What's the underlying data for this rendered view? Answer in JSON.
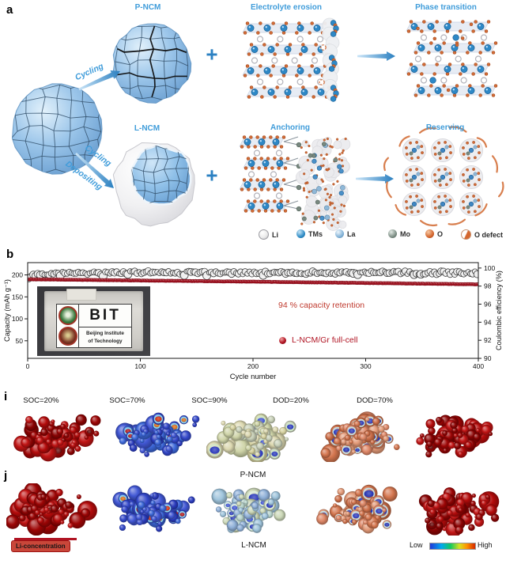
{
  "panel_labels": {
    "a": "a",
    "b": "b",
    "i": "i",
    "j": "j"
  },
  "panel_a": {
    "labels": {
      "p_ncm": "P-NCM",
      "l_ncm": "L-NCM",
      "cycling_top": "Cycling",
      "cycling_bottom": "Cycling",
      "depositing": "Depositing",
      "electrolyte_erosion": "Electrolyte erosion",
      "phase_transition": "Phase transition",
      "anchoring": "Anchoring",
      "reserving": "Reserving",
      "plus": "+"
    },
    "legend": [
      {
        "name": "li",
        "label": "Li"
      },
      {
        "name": "tms",
        "label": "TMs"
      },
      {
        "name": "la",
        "label": "La"
      },
      {
        "name": "mo",
        "label": "Mo"
      },
      {
        "name": "o",
        "label": "O"
      },
      {
        "name": "o-defect",
        "label": "O defect"
      }
    ],
    "accent_blue": "#3f9cda"
  },
  "panel_b": {
    "inset": {
      "big": "BIT",
      "line1": "Beijing Institute",
      "line2": "of Technology"
    }
  },
  "chart_data": {
    "type": "scatter",
    "xlabel": "Cycle number",
    "ylabel_left": "Capacity (mAh g⁻¹)",
    "ylabel_right": "Coulombic efficiency (%)",
    "xlim": [
      0,
      400
    ],
    "ylim_left": [
      10,
      228
    ],
    "ylim_right": [
      90,
      100.6
    ],
    "xticks": [
      0,
      100,
      200,
      300,
      400
    ],
    "yticks_left": [
      50,
      100,
      150,
      200
    ],
    "yticks_right": [
      90,
      92,
      94,
      96,
      98,
      100
    ],
    "annotation": "94 % capacity retention",
    "legend_label": "L-NCM/Gr full-cell",
    "grid": false,
    "series": [
      {
        "name": "Capacity (L-NCM/Gr full-cell)",
        "axis": "left",
        "marker": "filled-circle",
        "color": "#ab0f1e",
        "x": [
          1,
          100,
          200,
          300,
          400
        ],
        "y": [
          190,
          187.2,
          184.6,
          181.6,
          178.5
        ]
      },
      {
        "name": "Coulombic efficiency",
        "axis": "right",
        "marker": "open-circle",
        "color": "#4a4a4a",
        "x": [
          1,
          10,
          100,
          200,
          300,
          400
        ],
        "y": [
          98.9,
          99.4,
          99.5,
          99.45,
          99.5,
          99.45
        ]
      }
    ],
    "retention_value": "94 %"
  },
  "panel_i": {
    "columns": [
      "SOC=20%",
      "SOC=70%",
      "SOC=90%",
      "DOD=20%",
      "DOD=70%"
    ],
    "caption": "P-NCM",
    "palette_keys": [
      "red",
      "blue_hot",
      "cream",
      "salmon",
      "red"
    ]
  },
  "panel_j": {
    "caption": "L-NCM",
    "badge": "Li-concentration",
    "colorbar": {
      "low": "Low",
      "high": "High"
    },
    "palette_keys": [
      "red",
      "blue_hot",
      "cyan_mix",
      "salmon",
      "red"
    ]
  },
  "cluster_palettes": {
    "red": {
      "body": [
        "#9c0505",
        "#b30b0b",
        "#8a0303",
        "#c01414"
      ],
      "prob": 0.06,
      "spot": [
        "#5e0000"
      ],
      "rim": null
    },
    "blue_hot": {
      "body": [
        "#3347c8",
        "#2a3bbd",
        "#4157d4",
        "#3b66d8"
      ],
      "prob": 0.26,
      "spot": [
        "#cc2808",
        "#d86a10",
        "#b01010"
      ],
      "rim": "#90d8ea"
    },
    "cream": {
      "body": [
        "#d6d2a0",
        "#cfd4a8",
        "#dcd8b0",
        "#c8d0b8"
      ],
      "prob": 0.45,
      "spot": [
        "#2433b8",
        "#3a4fd0"
      ],
      "rim": "#cfe8c8"
    },
    "cyan_mix": {
      "body": [
        "#b8d4cc",
        "#9fc4dc",
        "#ccd8b8",
        "#8fb0d8"
      ],
      "prob": 0.42,
      "spot": [
        "#2433b8",
        "#3a4fd0"
      ],
      "rim": "#e0f0e0"
    },
    "salmon": {
      "body": [
        "#dd8666",
        "#d4764f",
        "#e39a78",
        "#cc6e48"
      ],
      "prob": 0.4,
      "spot": [
        "#2433b8",
        "#1a2bb0"
      ],
      "rim": "#bfe2ea"
    }
  }
}
